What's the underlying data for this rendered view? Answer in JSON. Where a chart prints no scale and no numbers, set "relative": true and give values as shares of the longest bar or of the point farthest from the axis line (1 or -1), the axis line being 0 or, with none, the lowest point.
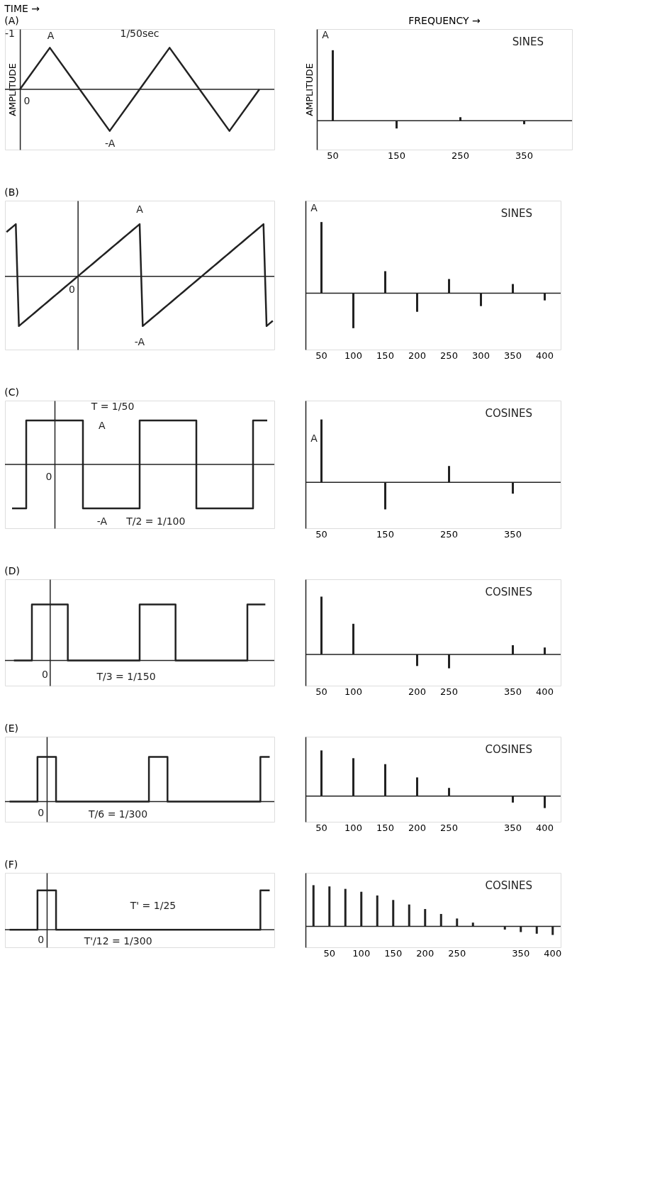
{
  "chart_data": [
    {
      "type": "line",
      "title": "TIME →",
      "subtitle": "(A)",
      "ylabel": "AMPLITUDE",
      "relative": true,
      "color": "#222222",
      "categories": [
        null,
        null,
        null,
        null,
        null,
        null,
        null,
        null,
        null
      ],
      "values": [
        0,
        1,
        0,
        -1,
        0,
        1,
        0,
        -1,
        0
      ],
      "tick_labels": false,
      "annotations": [
        "A",
        "-A",
        "-1",
        "1/50sec",
        "0"
      ]
    },
    {
      "type": "bar",
      "title": "FREQUENCY →",
      "ylabel": "AMPLITUDE",
      "relative": true,
      "color": "#222222",
      "categories": [
        "50",
        null,
        "150",
        null,
        "250",
        null,
        "350",
        null
      ],
      "values": [
        1,
        0,
        -0.11,
        0,
        0.05,
        0,
        -0.05,
        0
      ],
      "tick_labels": "x",
      "annotations": [
        "A",
        "SINES"
      ]
    },
    {
      "type": "line",
      "subtitle": "(B)",
      "relative": true,
      "color": "#222222",
      "categories": [
        null,
        null,
        null,
        null,
        null,
        null,
        null,
        null,
        null,
        null,
        null,
        null,
        null,
        null,
        null,
        null,
        null,
        null,
        null,
        null,
        null,
        null,
        null,
        null,
        null,
        null,
        null,
        null,
        null,
        null,
        null,
        null,
        null,
        null,
        null,
        null,
        null,
        null,
        null,
        null,
        null,
        null,
        null,
        null,
        null,
        null,
        null,
        null,
        null,
        null,
        null,
        null,
        null,
        null,
        null,
        null,
        null,
        null,
        null,
        null,
        null,
        null,
        null,
        null,
        null,
        null,
        null,
        null,
        null,
        null,
        null,
        null,
        null,
        null,
        null,
        null,
        null,
        null,
        null,
        null,
        null,
        null,
        null,
        null,
        null,
        null,
        null
      ],
      "values": [
        0.85,
        0.9,
        0.95,
        1,
        -0.95,
        -0.9,
        -0.85,
        -0.8,
        -0.75,
        -0.7,
        -0.65,
        -0.6,
        -0.55,
        -0.5,
        -0.45,
        -0.4,
        -0.35,
        -0.3,
        -0.25,
        -0.2,
        -0.15,
        -0.1,
        -0.05,
        0,
        0.05,
        0.1,
        0.15,
        0.2,
        0.25,
        0.3,
        0.35,
        0.4,
        0.45,
        0.5,
        0.55,
        0.6,
        0.65,
        0.7,
        0.75,
        0.8,
        0.85,
        0.9,
        0.95,
        1,
        -0.95,
        -0.9,
        -0.85,
        -0.8,
        -0.75,
        -0.7,
        -0.65,
        -0.6,
        -0.55,
        -0.5,
        -0.45,
        -0.4,
        -0.35,
        -0.3,
        -0.25,
        -0.2,
        -0.15,
        -0.1,
        -0.05,
        0,
        0.05,
        0.1,
        0.15,
        0.2,
        0.25,
        0.3,
        0.35,
        0.4,
        0.45,
        0.5,
        0.55,
        0.6,
        0.65,
        0.7,
        0.75,
        0.8,
        0.85,
        0.9,
        0.95,
        1,
        -0.95,
        -0.9,
        -0.85
      ],
      "tick_labels": false,
      "annotations": [
        "A",
        "-A",
        "0"
      ]
    },
    {
      "type": "bar",
      "relative": true,
      "color": "#222222",
      "categories": [
        "50",
        "100",
        "150",
        "200",
        "250",
        "300",
        "350",
        "400"
      ],
      "values": [
        1,
        -0.49,
        0.31,
        -0.26,
        0.2,
        -0.18,
        0.13,
        -0.1
      ],
      "tick_labels": "x",
      "annotations": [
        "A",
        "SINES"
      ]
    },
    {
      "type": "step",
      "subtitle": "(C)",
      "relative": true,
      "color": "#222222",
      "categories": [
        null,
        null,
        null,
        null,
        null,
        null,
        null,
        null,
        null,
        null,
        null,
        null,
        null,
        null,
        null,
        null,
        null,
        null,
        null
      ],
      "values": [
        -1,
        1,
        1,
        1,
        1,
        -1,
        -1,
        -1,
        -1,
        1,
        1,
        1,
        1,
        -1,
        -1,
        -1,
        -1,
        1,
        1
      ],
      "tick_labels": false,
      "annotations": [
        "T = 1/50",
        "A",
        "-A",
        "T/2 = 1/100",
        "0"
      ]
    },
    {
      "type": "bar",
      "relative": true,
      "color": "#222222",
      "categories": [
        "50",
        null,
        "150",
        null,
        "250",
        null,
        "350",
        null
      ],
      "values": [
        1,
        0,
        -0.43,
        0,
        0.26,
        0,
        -0.18,
        0
      ],
      "tick_labels": "x",
      "annotations": [
        "A",
        "COSINES"
      ]
    },
    {
      "type": "step",
      "subtitle": "(D)",
      "relative": true,
      "color": "#222222",
      "categories": [
        null,
        null,
        null,
        null,
        null,
        null,
        null,
        null,
        null,
        null,
        null,
        null,
        null,
        null,
        null
      ],
      "values": [
        0,
        1,
        1,
        0,
        0,
        0,
        0,
        1,
        1,
        0,
        0,
        0,
        0,
        1,
        1
      ],
      "tick_labels": false,
      "annotations": [
        "T/3 = 1/150",
        "0"
      ]
    },
    {
      "type": "bar",
      "relative": true,
      "color": "#222222",
      "categories": [
        "50",
        "100",
        null,
        "200",
        "250",
        null,
        "350",
        "400"
      ],
      "values": [
        1,
        0.53,
        0,
        -0.2,
        -0.24,
        0,
        0.16,
        0.12
      ],
      "tick_labels": "x",
      "annotations": [
        "COSINES"
      ]
    },
    {
      "type": "step",
      "subtitle": "(E)",
      "relative": true,
      "color": "#222222",
      "categories": [
        null,
        null,
        null,
        null,
        null,
        null,
        null,
        null,
        null,
        null,
        null,
        null,
        null,
        null,
        null,
        null,
        null,
        null,
        null,
        null,
        null,
        null,
        null,
        null,
        null,
        null,
        null,
        null,
        null
      ],
      "values": [
        0,
        0,
        0,
        1,
        1,
        0,
        0,
        0,
        0,
        0,
        0,
        0,
        0,
        0,
        0,
        1,
        1,
        0,
        0,
        0,
        0,
        0,
        0,
        0,
        0,
        0,
        0,
        1,
        1
      ],
      "tick_labels": false,
      "annotations": [
        "T/6 = 1/300",
        "0"
      ]
    },
    {
      "type": "bar",
      "relative": true,
      "color": "#222222",
      "categories": [
        "50",
        "100",
        "150",
        "200",
        "250",
        null,
        "350",
        "400"
      ],
      "values": [
        1,
        0.83,
        0.7,
        0.41,
        0.18,
        0,
        -0.14,
        -0.26
      ],
      "tick_labels": "x",
      "annotations": [
        "COSINES"
      ]
    },
    {
      "type": "step",
      "subtitle": "(F)",
      "relative": true,
      "color": "#222222",
      "categories": [
        null,
        null,
        null,
        null,
        null,
        null,
        null,
        null,
        null,
        null,
        null,
        null,
        null,
        null,
        null,
        null,
        null,
        null,
        null,
        null,
        null,
        null,
        null,
        null,
        null,
        null,
        null,
        null,
        null
      ],
      "values": [
        0,
        0,
        0,
        1,
        1,
        0,
        0,
        0,
        0,
        0,
        0,
        0,
        0,
        0,
        0,
        0,
        0,
        0,
        0,
        0,
        0,
        0,
        0,
        0,
        0,
        0,
        0,
        1,
        1
      ],
      "tick_labels": false,
      "annotations": [
        "T' = 1/25",
        "T'/12 = 1/300",
        "0"
      ]
    },
    {
      "type": "bar",
      "relative": true,
      "color": "#222222",
      "categories": [
        null,
        "50",
        null,
        "100",
        null,
        "150",
        null,
        "200",
        null,
        "250",
        null,
        null,
        null,
        "350",
        null,
        "400"
      ],
      "values": [
        1,
        0.97,
        0.91,
        0.84,
        0.75,
        0.64,
        0.53,
        0.42,
        0.3,
        0.19,
        0.09,
        0,
        -0.08,
        -0.14,
        -0.18,
        -0.21
      ],
      "tick_labels": "x",
      "annotations": [
        "COSINES"
      ]
    }
  ]
}
